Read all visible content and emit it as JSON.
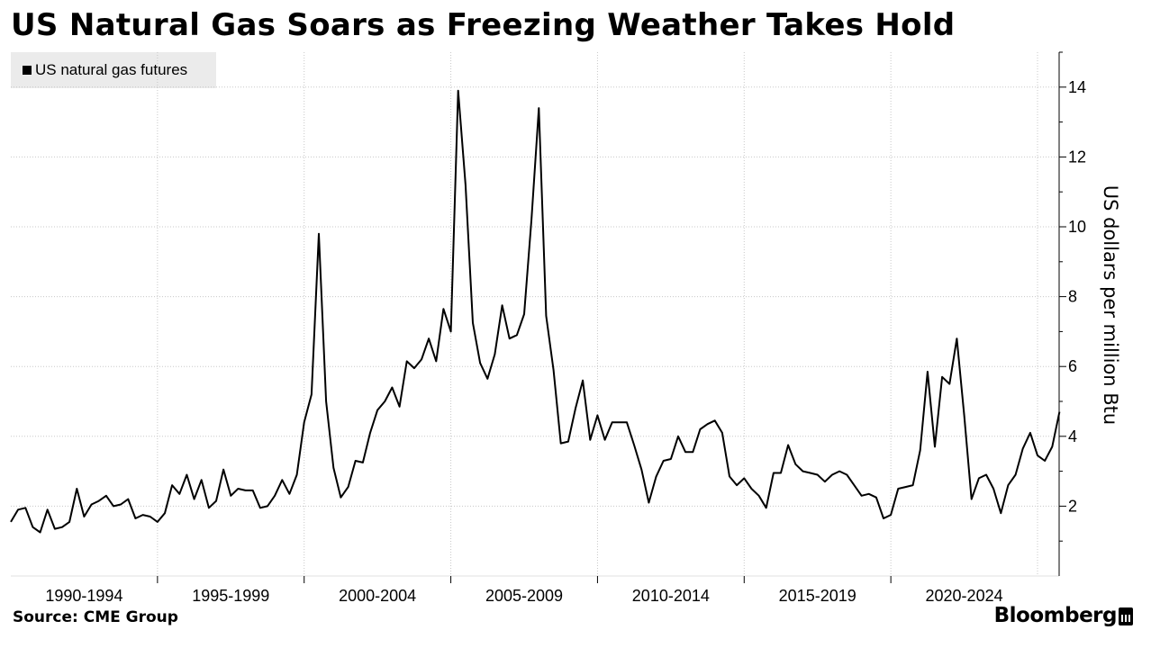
{
  "title": "US Natural Gas Soars as Freezing Weather Takes Hold",
  "legend": {
    "label": "US natural gas futures",
    "color": "#000000"
  },
  "source": "Source: CME Group",
  "brand": "Bloomberg",
  "chart_data": {
    "type": "line",
    "title": "US Natural Gas Soars as Freezing Weather Takes Hold",
    "xlabel": "",
    "ylabel": "US dollars per million Btu",
    "ylim": [
      0,
      15
    ],
    "yticks": [
      2,
      4,
      6,
      8,
      10,
      12,
      14
    ],
    "grid": true,
    "legend_position": "top-left",
    "x_start": 1990.0,
    "x_end": 2025.0,
    "x_step": 0.25,
    "period_labels": [
      {
        "label": "1990-1994",
        "start": 1990,
        "end": 1995
      },
      {
        "label": "1995-1999",
        "start": 1995,
        "end": 2000
      },
      {
        "label": "2000-2004",
        "start": 2000,
        "end": 2005
      },
      {
        "label": "2005-2009",
        "start": 2005,
        "end": 2010
      },
      {
        "label": "2010-2014",
        "start": 2010,
        "end": 2015
      },
      {
        "label": "2015-2019",
        "start": 2015,
        "end": 2020
      },
      {
        "label": "2020-2024",
        "start": 2020,
        "end": 2025
      }
    ],
    "series": [
      {
        "name": "US natural gas futures",
        "color": "#000000",
        "values": [
          1.55,
          1.9,
          1.95,
          1.4,
          1.25,
          1.9,
          1.35,
          1.4,
          1.55,
          2.5,
          1.7,
          2.05,
          2.15,
          2.3,
          2.0,
          2.05,
          2.2,
          1.65,
          1.75,
          1.7,
          1.55,
          1.8,
          2.6,
          2.35,
          2.9,
          2.2,
          2.75,
          1.95,
          2.15,
          3.05,
          2.3,
          2.5,
          2.45,
          2.45,
          1.95,
          2.0,
          2.3,
          2.75,
          2.35,
          2.9,
          4.4,
          5.2,
          9.8,
          5.0,
          3.1,
          2.25,
          2.55,
          3.3,
          3.25,
          4.1,
          4.75,
          5.0,
          5.4,
          4.85,
          6.15,
          5.95,
          6.2,
          6.8,
          6.15,
          7.65,
          7.0,
          13.9,
          11.2,
          7.25,
          6.1,
          5.65,
          6.35,
          7.75,
          6.8,
          6.9,
          7.5,
          10.2,
          13.4,
          7.45,
          5.9,
          3.8,
          3.85,
          4.8,
          5.6,
          3.9,
          4.6,
          3.9,
          4.4,
          4.4,
          4.4,
          3.75,
          3.05,
          2.1,
          2.85,
          3.3,
          3.35,
          4.0,
          3.55,
          3.55,
          4.2,
          4.35,
          4.45,
          4.1,
          2.85,
          2.6,
          2.8,
          2.5,
          2.3,
          1.95,
          2.95,
          2.95,
          3.75,
          3.2,
          3.0,
          2.95,
          2.9,
          2.7,
          2.9,
          3.0,
          2.9,
          2.6,
          2.3,
          2.35,
          2.25,
          1.65,
          1.75,
          2.5,
          2.55,
          2.6,
          3.6,
          5.85,
          3.7,
          5.7,
          5.5,
          6.8,
          4.6,
          2.2,
          2.8,
          2.9,
          2.5,
          1.8,
          2.6,
          2.9,
          3.65,
          4.1,
          3.45,
          3.3,
          3.7,
          4.7
        ]
      }
    ]
  }
}
